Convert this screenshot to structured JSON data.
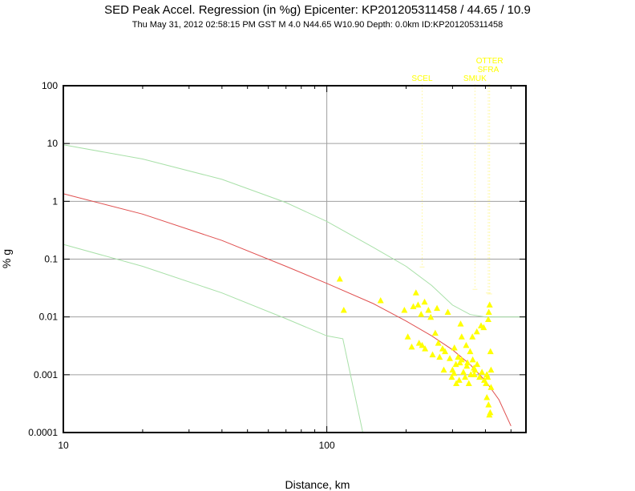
{
  "title": "SED Peak Accel. Regression (in %g) Epicenter: KP201205311458 / 44.65 / 10.9",
  "subtitle": "Thu May 31, 2012 02:58:15 PM GST   M 4.0   N44.65 W10.90   Depth: 0.0km   ID:KP201205311458",
  "colors": {
    "axes": "#000000",
    "grid": "#a0a0a0",
    "regression": "#e05050",
    "bounds": "#a8e0a8",
    "stations": "#ffff00",
    "station_lines": "#fff8b0"
  },
  "chart_data": {
    "type": "scatter",
    "title": "SED Peak Accel. Regression (in %g) Epicenter: KP201205311458 / 44.65 / 10.9",
    "xlabel": "Distance, km",
    "ylabel": "% g",
    "xscale": "log",
    "yscale": "log",
    "xlim": [
      10,
      570
    ],
    "ylim": [
      0.0001,
      100
    ],
    "grid": true,
    "x_ticks": [
      10,
      100
    ],
    "x_tick_labels": [
      "10",
      "100"
    ],
    "y_ticks": [
      0.0001,
      0.001,
      0.01,
      0.1,
      1,
      10,
      100
    ],
    "y_tick_labels": [
      "0.0001",
      "0.001",
      "0.01",
      "0.1",
      "1",
      "10",
      "100"
    ],
    "regression": {
      "name": "regression",
      "x": [
        10,
        20,
        40,
        70,
        100,
        150,
        200,
        250,
        300,
        350,
        400,
        450,
        500
      ],
      "y": [
        1.35,
        0.6,
        0.21,
        0.075,
        0.038,
        0.017,
        0.0085,
        0.0047,
        0.0027,
        0.0015,
        0.00078,
        0.00037,
        0.00013
      ]
    },
    "upper_bound": {
      "name": "upper bound",
      "x": [
        10,
        20,
        40,
        70,
        100,
        150,
        200,
        250,
        300,
        350,
        400,
        450,
        500,
        570
      ],
      "y": [
        9.5,
        5.4,
        2.4,
        0.95,
        0.45,
        0.16,
        0.075,
        0.035,
        0.016,
        0.011,
        0.01,
        0.01,
        0.01,
        0.01
      ]
    },
    "lower_bound": {
      "name": "lower bound",
      "x": [
        10,
        20,
        40,
        70,
        100,
        115,
        137
      ],
      "y": [
        0.18,
        0.075,
        0.026,
        0.0093,
        0.0047,
        0.0042,
        0.0001
      ]
    },
    "stations": [
      {
        "label": "SCEL",
        "x": 230,
        "y": 0.073
      },
      {
        "label": "SMUK",
        "x": 365,
        "y": 0.03
      },
      {
        "label": "SFRA",
        "x": 410,
        "y": 0.026
      },
      {
        "label": "OTTER",
        "x": 415,
        "y": 0.025
      }
    ],
    "points": {
      "x": [
        112,
        116,
        160,
        197,
        213,
        218,
        222,
        228,
        235,
        243,
        262,
        288,
        203,
        210,
        224,
        230,
        236,
        252,
        265,
        275,
        281,
        293,
        300,
        304,
        309,
        315,
        320,
        325,
        330,
        335,
        340,
        346,
        352,
        358,
        365,
        372,
        380,
        388,
        396,
        402,
        405,
        408,
        410,
        412,
        415,
        418,
        420,
        325,
        338,
        350,
        362,
        305,
        298,
        310,
        318,
        357,
        371,
        385,
        394,
        405,
        411,
        414,
        417,
        420,
        278,
        268,
        258,
        248,
        322,
        342,
        363
      ],
      "y": [
        0.045,
        0.013,
        0.019,
        0.013,
        0.015,
        0.026,
        0.016,
        0.011,
        0.018,
        0.013,
        0.014,
        0.012,
        0.0045,
        0.003,
        0.0035,
        0.0032,
        0.0028,
        0.0022,
        0.0035,
        0.0028,
        0.0025,
        0.0019,
        0.0012,
        0.00105,
        0.0015,
        0.002,
        0.0016,
        0.0018,
        0.0011,
        0.0009,
        0.0014,
        0.0007,
        0.001,
        0.0018,
        0.0012,
        0.0015,
        0.0009,
        0.0011,
        0.0008,
        0.0007,
        0.001,
        0.0009,
        0.009,
        0.012,
        0.016,
        0.0025,
        0.0012,
        0.0045,
        0.0032,
        0.0025,
        0.0013,
        0.0029,
        0.0009,
        0.0007,
        0.0008,
        0.0045,
        0.0055,
        0.007,
        0.0065,
        0.0004,
        0.0003,
        0.0002,
        0.00022,
        0.0006,
        0.0012,
        0.002,
        0.0052,
        0.0098,
        0.0075,
        0.0016,
        0.001
      ]
    }
  }
}
